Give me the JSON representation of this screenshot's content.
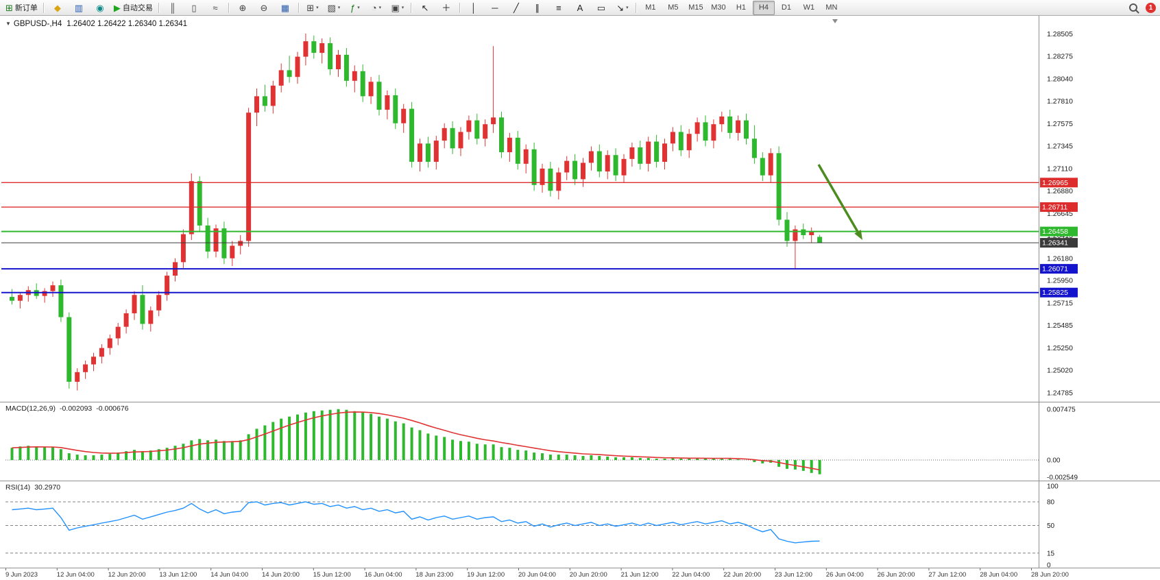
{
  "toolbar": {
    "items": [
      {
        "t": "btn",
        "name": "new-order-button",
        "glyph": "⊞",
        "color": "#1a7a1a",
        "label": "新订单"
      },
      {
        "t": "sep"
      },
      {
        "t": "btn",
        "name": "metaeditor-icon",
        "glyph": "◆",
        "color": "#d9a514"
      },
      {
        "t": "btn",
        "name": "market-watch-icon",
        "glyph": "▥",
        "color": "#2a5db0"
      },
      {
        "t": "btn",
        "name": "news-icon",
        "glyph": "◉",
        "color": "#0a8a8a"
      },
      {
        "t": "btn",
        "name": "auto-trading-button",
        "glyph": "▶",
        "color": "#1fa51f",
        "label": "自动交易"
      },
      {
        "t": "sep"
      },
      {
        "t": "btn",
        "name": "bar-chart-button",
        "glyph": "║",
        "color": "#444"
      },
      {
        "t": "btn",
        "name": "candlestick-chart-button",
        "glyph": "▯",
        "color": "#444"
      },
      {
        "t": "btn",
        "name": "line-chart-button",
        "glyph": "≈",
        "color": "#444"
      },
      {
        "t": "sep"
      },
      {
        "t": "btn",
        "name": "zoom-in-button",
        "glyph": "⊕",
        "color": "#444"
      },
      {
        "t": "btn",
        "name": "zoom-out-button",
        "glyph": "⊖",
        "color": "#444"
      },
      {
        "t": "btn",
        "name": "tile-windows-button",
        "glyph": "▦",
        "color": "#2a5db0"
      },
      {
        "t": "sep"
      },
      {
        "t": "btn",
        "name": "new-chart-button",
        "glyph": "⊞",
        "color": "#444",
        "caret": true
      },
      {
        "t": "btn",
        "name": "profiles-button",
        "glyph": "▧",
        "color": "#444",
        "caret": true
      },
      {
        "t": "btn",
        "name": "indicators-button",
        "glyph": "ƒ",
        "color": "#1a7a1a",
        "caret": true
      },
      {
        "t": "btn",
        "name": "periods-button",
        "glyph": "◔",
        "color": "#444",
        "caret": true
      },
      {
        "t": "btn",
        "name": "templates-button",
        "glyph": "▣",
        "color": "#444",
        "caret": true
      },
      {
        "t": "sep"
      },
      {
        "t": "btn",
        "name": "cursor-button",
        "glyph": "↖",
        "color": "#222"
      },
      {
        "t": "btn",
        "name": "crosshair-button",
        "glyph": "＋",
        "color": "#222"
      },
      {
        "t": "sep"
      },
      {
        "t": "btn",
        "name": "vertical-line-button",
        "glyph": "│",
        "color": "#222"
      },
      {
        "t": "btn",
        "name": "horizontal-line-button",
        "glyph": "─",
        "color": "#222"
      },
      {
        "t": "btn",
        "name": "trendline-button",
        "glyph": "╱",
        "color": "#222"
      },
      {
        "t": "btn",
        "name": "equidistant-channel-button",
        "glyph": "∥",
        "color": "#222"
      },
      {
        "t": "btn",
        "name": "fibonacci-button",
        "glyph": "≡",
        "color": "#222"
      },
      {
        "t": "btn",
        "name": "text-button",
        "glyph": "A",
        "color": "#222"
      },
      {
        "t": "btn",
        "name": "text-label-button",
        "glyph": "▭",
        "color": "#222"
      },
      {
        "t": "btn",
        "name": "arrows-button",
        "glyph": "↘",
        "color": "#222",
        "caret": true
      },
      {
        "t": "sep"
      },
      {
        "t": "tf",
        "label": "M1"
      },
      {
        "t": "tf",
        "label": "M5"
      },
      {
        "t": "tf",
        "label": "M15"
      },
      {
        "t": "tf",
        "label": "M30"
      },
      {
        "t": "tf",
        "label": "H1"
      },
      {
        "t": "tf",
        "label": "H4",
        "active": true
      },
      {
        "t": "tf",
        "label": "D1"
      },
      {
        "t": "tf",
        "label": "W1"
      },
      {
        "t": "tf",
        "label": "MN"
      },
      {
        "t": "spacer"
      },
      {
        "t": "search",
        "name": "search-icon"
      },
      {
        "t": "badge",
        "name": "notification-badge",
        "label": "1"
      }
    ]
  },
  "chart_data": {
    "type": "candlestick",
    "title": "GBPUSD-,H4",
    "title_marker": "▼",
    "ohlc_display": "1.26402 1.26422 1.26340 1.26341",
    "timeframe": "H4",
    "ylim": [
      1.247,
      1.2868
    ],
    "colors": {
      "bull": "#e03232",
      "bear": "#2db82d",
      "macd_hist": "#2db82d",
      "macd_signal": "#e03232",
      "rsi_line": "#1e90ff",
      "arrow": "#4c8b1e"
    },
    "price_axis_ticks": [
      "1.28505",
      "1.28275",
      "1.28040",
      "1.27810",
      "1.27575",
      "1.27345",
      "1.27110",
      "1.26880",
      "1.26645",
      "1.26415",
      "1.26180",
      "1.25950",
      "1.25715",
      "1.25485",
      "1.25250",
      "1.25020",
      "1.24785"
    ],
    "time_axis_labels": [
      "9 Jun 2023",
      "12 Jun 04:00",
      "12 Jun 20:00",
      "13 Jun 12:00",
      "14 Jun 04:00",
      "14 Jun 20:00",
      "15 Jun 12:00",
      "16 Jun 04:00",
      "18 Jun 23:00",
      "19 Jun 12:00",
      "20 Jun 04:00",
      "20 Jun 20:00",
      "21 Jun 12:00",
      "22 Jun 04:00",
      "22 Jun 20:00",
      "23 Jun 12:00",
      "26 Jun 04:00",
      "26 Jun 20:00",
      "27 Jun 12:00",
      "28 Jun 04:00",
      "28 Jun 20:00"
    ],
    "levels": [
      {
        "name": "resistance-line-1",
        "price": 1.26965,
        "label": "1.26965",
        "color": "#dd2c2c",
        "w": 1.4
      },
      {
        "name": "resistance-line-2",
        "price": 1.26711,
        "label": "1.26711",
        "color": "#dd2c2c",
        "w": 1.4
      },
      {
        "name": "support-line-green",
        "price": 1.26458,
        "label": "1.26458",
        "color": "#2db82d",
        "w": 2
      },
      {
        "name": "current-price-line",
        "price": 1.26341,
        "label": "1.26341",
        "color": "#3a3a3a",
        "w": 1
      },
      {
        "name": "support-line-blue-1",
        "price": 1.26071,
        "label": "1.26071",
        "color": "#1414cc",
        "w": 2
      },
      {
        "name": "support-line-blue-2",
        "price": 1.25825,
        "label": "1.25825",
        "color": "#1414cc",
        "w": 2
      }
    ],
    "annotation": {
      "type": "arrow",
      "from": [
        1194,
        240
      ],
      "to": [
        1258,
        350
      ],
      "color": "#4c8b1e",
      "width": 3.5
    },
    "candles": [
      [
        1.2578,
        1.2586,
        1.257,
        1.2574
      ],
      [
        1.2574,
        1.2583,
        1.2566,
        1.258
      ],
      [
        1.258,
        1.2589,
        1.2573,
        1.2585
      ],
      [
        1.2585,
        1.2592,
        1.2576,
        1.2579
      ],
      [
        1.2579,
        1.2587,
        1.2572,
        1.2584
      ],
      [
        1.2584,
        1.2594,
        1.2578,
        1.259
      ],
      [
        1.259,
        1.2596,
        1.2552,
        1.2557
      ],
      [
        1.2557,
        1.2562,
        1.2483,
        1.249
      ],
      [
        1.249,
        1.2504,
        1.2481,
        1.25
      ],
      [
        1.25,
        1.2512,
        1.2493,
        1.2508
      ],
      [
        1.2508,
        1.252,
        1.2501,
        1.2516
      ],
      [
        1.2516,
        1.2529,
        1.2509,
        1.2525
      ],
      [
        1.2525,
        1.2539,
        1.2518,
        1.2535
      ],
      [
        1.2535,
        1.2551,
        1.2528,
        1.2547
      ],
      [
        1.2547,
        1.2565,
        1.254,
        1.2561
      ],
      [
        1.2561,
        1.2584,
        1.2554,
        1.258
      ],
      [
        1.258,
        1.259,
        1.2544,
        1.255
      ],
      [
        1.255,
        1.2568,
        1.2542,
        1.2564
      ],
      [
        1.2564,
        1.2584,
        1.2558,
        1.258
      ],
      [
        1.258,
        1.2604,
        1.2574,
        1.26
      ],
      [
        1.26,
        1.2618,
        1.2594,
        1.2614
      ],
      [
        1.2614,
        1.2648,
        1.2608,
        1.2643
      ],
      [
        1.2643,
        1.2706,
        1.2637,
        1.2698
      ],
      [
        1.2698,
        1.2703,
        1.2646,
        1.2652
      ],
      [
        1.2652,
        1.266,
        1.2618,
        1.2625
      ],
      [
        1.2625,
        1.2653,
        1.2619,
        1.2649
      ],
      [
        1.2649,
        1.2656,
        1.2612,
        1.2618
      ],
      [
        1.2618,
        1.2636,
        1.261,
        1.2631
      ],
      [
        1.2631,
        1.2642,
        1.2622,
        1.2636
      ],
      [
        1.2636,
        1.2774,
        1.263,
        1.2769
      ],
      [
        1.2769,
        1.2794,
        1.2755,
        1.2786
      ],
      [
        1.2786,
        1.2798,
        1.277,
        1.2776
      ],
      [
        1.2776,
        1.2802,
        1.2768,
        1.2797
      ],
      [
        1.2797,
        1.282,
        1.279,
        1.2813
      ],
      [
        1.2813,
        1.2828,
        1.28,
        1.2806
      ],
      [
        1.2806,
        1.2832,
        1.2799,
        1.2827
      ],
      [
        1.2827,
        1.2851,
        1.2818,
        1.2843
      ],
      [
        1.2843,
        1.2849,
        1.2825,
        1.2831
      ],
      [
        1.2831,
        1.2846,
        1.282,
        1.2841
      ],
      [
        1.2841,
        1.2847,
        1.2808,
        1.2814
      ],
      [
        1.2814,
        1.2834,
        1.2806,
        1.2829
      ],
      [
        1.2829,
        1.2836,
        1.2796,
        1.2802
      ],
      [
        1.2802,
        1.2818,
        1.279,
        1.2812
      ],
      [
        1.2812,
        1.2819,
        1.278,
        1.2786
      ],
      [
        1.2786,
        1.2806,
        1.2778,
        1.2801
      ],
      [
        1.2801,
        1.2808,
        1.2766,
        1.2772
      ],
      [
        1.2772,
        1.2792,
        1.2762,
        1.2787
      ],
      [
        1.2787,
        1.2794,
        1.2752,
        1.2758
      ],
      [
        1.2758,
        1.2778,
        1.2748,
        1.2773
      ],
      [
        1.2773,
        1.278,
        1.2712,
        1.2718
      ],
      [
        1.2718,
        1.2742,
        1.2708,
        1.2737
      ],
      [
        1.2737,
        1.2744,
        1.2712,
        1.2718
      ],
      [
        1.2718,
        1.2745,
        1.271,
        1.274
      ],
      [
        1.274,
        1.2758,
        1.2732,
        1.2753
      ],
      [
        1.2753,
        1.276,
        1.2726,
        1.2732
      ],
      [
        1.2732,
        1.2754,
        1.2724,
        1.2749
      ],
      [
        1.2749,
        1.2766,
        1.2741,
        1.2761
      ],
      [
        1.2761,
        1.2768,
        1.2736,
        1.2742
      ],
      [
        1.2742,
        1.2762,
        1.2734,
        1.2757
      ],
      [
        1.2757,
        1.2838,
        1.2748,
        1.2764
      ],
      [
        1.2764,
        1.277,
        1.2722,
        1.2728
      ],
      [
        1.2728,
        1.2748,
        1.2718,
        1.2743
      ],
      [
        1.2743,
        1.275,
        1.271,
        1.2716
      ],
      [
        1.2716,
        1.2736,
        1.2706,
        1.2731
      ],
      [
        1.2731,
        1.2738,
        1.2688,
        1.2694
      ],
      [
        1.2694,
        1.2716,
        1.2686,
        1.2711
      ],
      [
        1.2711,
        1.2718,
        1.2682,
        1.2688
      ],
      [
        1.2688,
        1.2712,
        1.2679,
        1.2707
      ],
      [
        1.2707,
        1.2724,
        1.2699,
        1.2719
      ],
      [
        1.2719,
        1.2726,
        1.2694,
        1.27
      ],
      [
        1.27,
        1.2722,
        1.2692,
        1.2717
      ],
      [
        1.2717,
        1.2734,
        1.2709,
        1.2729
      ],
      [
        1.2729,
        1.2736,
        1.2702,
        1.2708
      ],
      [
        1.2708,
        1.273,
        1.27,
        1.2725
      ],
      [
        1.2725,
        1.2732,
        1.2698,
        1.2704
      ],
      [
        1.2704,
        1.2726,
        1.2696,
        1.2721
      ],
      [
        1.2721,
        1.2738,
        1.2713,
        1.2733
      ],
      [
        1.2733,
        1.274,
        1.271,
        1.2716
      ],
      [
        1.2716,
        1.2744,
        1.2708,
        1.2739
      ],
      [
        1.2739,
        1.2746,
        1.2712,
        1.2718
      ],
      [
        1.2718,
        1.2742,
        1.271,
        1.2737
      ],
      [
        1.2737,
        1.2754,
        1.2729,
        1.2749
      ],
      [
        1.2749,
        1.2756,
        1.2724,
        1.273
      ],
      [
        1.273,
        1.2752,
        1.2722,
        1.2747
      ],
      [
        1.2747,
        1.2764,
        1.2739,
        1.2759
      ],
      [
        1.2759,
        1.2766,
        1.2734,
        1.274
      ],
      [
        1.274,
        1.2762,
        1.2732,
        1.2757
      ],
      [
        1.2757,
        1.277,
        1.2749,
        1.2765
      ],
      [
        1.2765,
        1.2772,
        1.2742,
        1.2748
      ],
      [
        1.2748,
        1.2766,
        1.274,
        1.2761
      ],
      [
        1.2761,
        1.2768,
        1.2736,
        1.2742
      ],
      [
        1.2742,
        1.2756,
        1.2716,
        1.2722
      ],
      [
        1.2722,
        1.2728,
        1.2698,
        1.2704
      ],
      [
        1.2704,
        1.2732,
        1.2696,
        1.2727
      ],
      [
        1.2727,
        1.2734,
        1.2652,
        1.2658
      ],
      [
        1.2658,
        1.2666,
        1.263,
        1.2636
      ],
      [
        1.2636,
        1.2652,
        1.2607,
        1.2648
      ],
      [
        1.2648,
        1.2654,
        1.2638,
        1.2642
      ],
      [
        1.2642,
        1.265,
        1.2634,
        1.2646
      ],
      [
        1.26402,
        1.26422,
        1.2634,
        1.26341
      ]
    ],
    "macd": {
      "label": "MACD(12,26,9)",
      "value_main": "-0.002093",
      "value_signal": "-0.000676",
      "axis_ticks": [
        "0.007475",
        "0.00",
        "-0.002549"
      ],
      "histogram": [
        0.0018,
        0.002,
        0.0021,
        0.002,
        0.0019,
        0.0019,
        0.0016,
        0.001,
        0.0008,
        0.0007,
        0.0007,
        0.0008,
        0.0009,
        0.0011,
        0.0013,
        0.0015,
        0.0013,
        0.0014,
        0.0016,
        0.0018,
        0.0021,
        0.0024,
        0.0029,
        0.0031,
        0.0029,
        0.003,
        0.0028,
        0.0028,
        0.0029,
        0.0038,
        0.0046,
        0.0051,
        0.0056,
        0.0061,
        0.0064,
        0.0067,
        0.007,
        0.0072,
        0.0073,
        0.0074,
        0.0075,
        0.0074,
        0.0072,
        0.007,
        0.0068,
        0.0064,
        0.0061,
        0.0057,
        0.0054,
        0.0048,
        0.0044,
        0.0039,
        0.0036,
        0.0034,
        0.003,
        0.0028,
        0.0027,
        0.0024,
        0.0023,
        0.0023,
        0.0019,
        0.0018,
        0.0015,
        0.0014,
        0.0011,
        0.001,
        0.0008,
        0.0008,
        0.0008,
        0.0007,
        0.0006,
        0.0007,
        0.0006,
        0.0005,
        0.0004,
        0.0004,
        0.0004,
        0.0003,
        0.0003,
        0.0002,
        0.0002,
        0.0003,
        0.0002,
        0.0002,
        0.0003,
        0.0002,
        0.0002,
        0.0003,
        0.0002,
        0.0001,
        0.0,
        -0.0003,
        -0.0005,
        -0.0004,
        -0.001,
        -0.0013,
        -0.0014,
        -0.0016,
        -0.0019,
        -0.002093
      ]
    },
    "rsi": {
      "label": "RSI(14)",
      "value_text": "30.2970",
      "axis_ticks": [
        "100",
        "80",
        "50",
        "15",
        "0"
      ],
      "levels": [
        80,
        50,
        15
      ],
      "values": [
        70,
        71,
        72,
        70,
        71,
        72,
        60,
        44,
        47,
        49,
        51,
        53,
        55,
        57,
        60,
        63,
        58,
        61,
        64,
        67,
        69,
        72,
        78,
        71,
        66,
        70,
        65,
        67,
        68,
        79,
        80,
        76,
        78,
        79,
        76,
        78,
        80,
        77,
        78,
        74,
        76,
        72,
        74,
        70,
        72,
        68,
        70,
        66,
        68,
        58,
        61,
        57,
        60,
        62,
        58,
        60,
        62,
        58,
        60,
        61,
        55,
        57,
        53,
        55,
        49,
        52,
        48,
        51,
        53,
        50,
        52,
        54,
        50,
        52,
        49,
        51,
        53,
        50,
        53,
        50,
        52,
        54,
        51,
        53,
        55,
        52,
        54,
        56,
        52,
        54,
        51,
        46,
        42,
        45,
        33,
        30,
        28,
        29,
        30,
        30.297
      ]
    }
  }
}
